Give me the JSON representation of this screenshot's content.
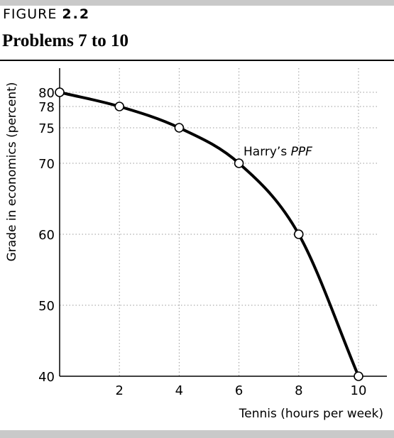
{
  "figure": {
    "label": "FIGURE",
    "number": "2.2",
    "title": "Problems 7 to 10"
  },
  "chart_data": {
    "type": "line",
    "xlabel": "Tennis (hours per week)",
    "ylabel": "Grade in economics (percent)",
    "xlim": [
      0,
      10
    ],
    "ylim": [
      40,
      80
    ],
    "x_ticks": [
      2,
      4,
      6,
      8,
      10
    ],
    "y_ticks": [
      40,
      50,
      60,
      70,
      75,
      78,
      80
    ],
    "grid": true,
    "series": [
      {
        "name": "",
        "x": [
          0,
          2,
          4,
          6,
          8,
          10
        ],
        "y": [
          80,
          78,
          75,
          70,
          60,
          40
        ]
      }
    ],
    "annotation": {
      "prefix": "Harry’s ",
      "emph": "PPF"
    },
    "colors": {
      "line": "#000000",
      "grid": "#999999",
      "marker_fill": "#ffffff",
      "band": "#c9c9c9"
    }
  }
}
